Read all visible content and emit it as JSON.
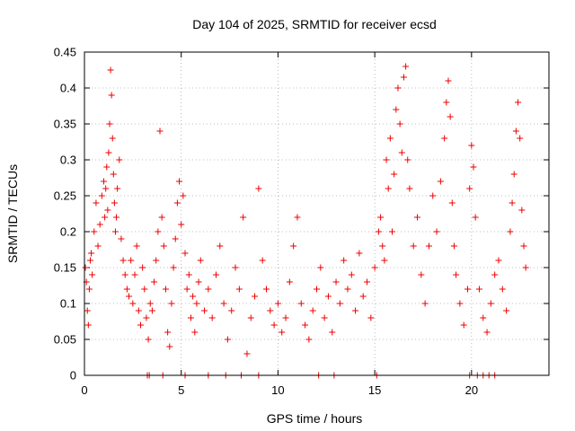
{
  "chart_data": {
    "type": "scatter",
    "title": "Day 104 of 2025, SRMTID for receiver ecsd",
    "xlabel": "GPS time / hours",
    "ylabel": "SRMTID / TECUs",
    "xlim": [
      0,
      24
    ],
    "ylim": [
      0,
      0.45
    ],
    "xticks": [
      0,
      5,
      10,
      15,
      20
    ],
    "xtick_labels": [
      "0",
      "5",
      "10",
      "15",
      "20"
    ],
    "yticks": [
      0,
      0.05,
      0.1,
      0.15,
      0.2,
      0.25,
      0.3,
      0.35,
      0.4,
      0.45
    ],
    "ytick_labels": [
      "0",
      "0.05",
      "0.1",
      "0.15",
      "0.2",
      "0.25",
      "0.3",
      "0.35",
      "0.4",
      "0.45"
    ],
    "grid": true,
    "marker": "+",
    "color": "#ee0000",
    "series": [
      {
        "name": "SRMTID",
        "x": [
          0.05,
          0.1,
          0.15,
          0.2,
          0.25,
          0.3,
          0.35,
          0.4,
          0.5,
          0.6,
          0.7,
          0.8,
          0.9,
          1.0,
          1.05,
          1.1,
          1.15,
          1.2,
          1.25,
          1.3,
          1.35,
          1.4,
          1.45,
          1.5,
          1.55,
          1.6,
          1.65,
          1.7,
          1.8,
          1.9,
          2.0,
          2.1,
          2.2,
          2.3,
          2.4,
          2.5,
          2.6,
          2.7,
          2.8,
          2.9,
          3.0,
          3.1,
          3.2,
          3.3,
          3.4,
          3.5,
          3.6,
          3.7,
          3.8,
          3.9,
          4.0,
          4.1,
          4.2,
          4.3,
          4.4,
          4.5,
          4.6,
          4.7,
          4.8,
          4.9,
          5.0,
          5.1,
          5.2,
          5.3,
          5.4,
          5.5,
          5.6,
          5.7,
          5.8,
          5.9,
          6.0,
          6.2,
          6.4,
          6.6,
          6.8,
          7.0,
          7.2,
          7.4,
          7.6,
          7.8,
          8.0,
          8.2,
          8.4,
          8.6,
          8.8,
          9.0,
          9.2,
          9.4,
          9.6,
          9.8,
          10.0,
          10.2,
          10.4,
          10.6,
          10.8,
          11.0,
          11.2,
          11.4,
          11.6,
          11.8,
          12.0,
          12.2,
          12.4,
          12.6,
          12.8,
          13.0,
          13.2,
          13.4,
          13.6,
          13.8,
          14.0,
          14.2,
          14.4,
          14.6,
          14.8,
          15.0,
          15.2,
          15.3,
          15.4,
          15.5,
          15.6,
          15.7,
          15.8,
          15.9,
          16.0,
          16.1,
          16.2,
          16.3,
          16.4,
          16.5,
          16.6,
          16.7,
          16.8,
          17.0,
          17.2,
          17.4,
          17.6,
          17.8,
          18.0,
          18.2,
          18.4,
          18.6,
          18.7,
          18.8,
          18.9,
          19.0,
          19.1,
          19.2,
          19.4,
          19.6,
          19.8,
          19.9,
          20.0,
          20.1,
          20.2,
          20.4,
          20.6,
          20.8,
          21.0,
          21.2,
          21.4,
          21.6,
          21.8,
          22.0,
          22.1,
          22.2,
          22.3,
          22.4,
          22.5,
          22.6,
          22.7,
          22.8,
          3.25,
          3.35,
          4.05,
          5.2,
          6.4,
          7.3,
          8.1,
          9.0,
          12.1,
          12.9,
          15.1,
          19.9,
          20.3,
          20.6,
          20.9,
          21.2
        ],
        "y": [
          0.15,
          0.13,
          0.09,
          0.07,
          0.12,
          0.16,
          0.17,
          0.14,
          0.2,
          0.24,
          0.18,
          0.21,
          0.25,
          0.27,
          0.22,
          0.26,
          0.29,
          0.23,
          0.31,
          0.35,
          0.425,
          0.39,
          0.33,
          0.28,
          0.24,
          0.2,
          0.22,
          0.26,
          0.3,
          0.19,
          0.16,
          0.14,
          0.12,
          0.11,
          0.16,
          0.1,
          0.14,
          0.18,
          0.09,
          0.07,
          0.15,
          0.12,
          0.08,
          0.05,
          0.1,
          0.09,
          0.13,
          0.16,
          0.2,
          0.34,
          0.22,
          0.18,
          0.12,
          0.06,
          0.04,
          0.1,
          0.15,
          0.19,
          0.24,
          0.27,
          0.21,
          0.25,
          0.17,
          0.12,
          0.14,
          0.08,
          0.11,
          0.06,
          0.1,
          0.13,
          0.16,
          0.09,
          0.12,
          0.08,
          0.14,
          0.18,
          0.1,
          0.05,
          0.09,
          0.15,
          0.12,
          0.22,
          0.03,
          0.08,
          0.11,
          0.26,
          0.16,
          0.12,
          0.09,
          0.07,
          0.1,
          0.06,
          0.08,
          0.13,
          0.18,
          0.22,
          0.1,
          0.07,
          0.05,
          0.09,
          0.12,
          0.15,
          0.08,
          0.11,
          0.06,
          0.13,
          0.1,
          0.16,
          0.12,
          0.14,
          0.09,
          0.17,
          0.11,
          0.13,
          0.08,
          0.15,
          0.2,
          0.22,
          0.18,
          0.16,
          0.3,
          0.26,
          0.33,
          0.2,
          0.28,
          0.37,
          0.4,
          0.35,
          0.31,
          0.415,
          0.43,
          0.3,
          0.26,
          0.18,
          0.22,
          0.14,
          0.1,
          0.18,
          0.25,
          0.2,
          0.27,
          0.33,
          0.38,
          0.41,
          0.36,
          0.24,
          0.18,
          0.14,
          0.1,
          0.07,
          0.12,
          0.26,
          0.32,
          0.29,
          0.22,
          0.12,
          0.08,
          0.06,
          0.1,
          0.14,
          0.16,
          0.12,
          0.09,
          0.2,
          0.24,
          0.28,
          0.34,
          0.38,
          0.33,
          0.23,
          0.18,
          0.15,
          0,
          0,
          0,
          0,
          0,
          0,
          0,
          0,
          0,
          0,
          0,
          0,
          0,
          0,
          0,
          0
        ]
      }
    ]
  }
}
